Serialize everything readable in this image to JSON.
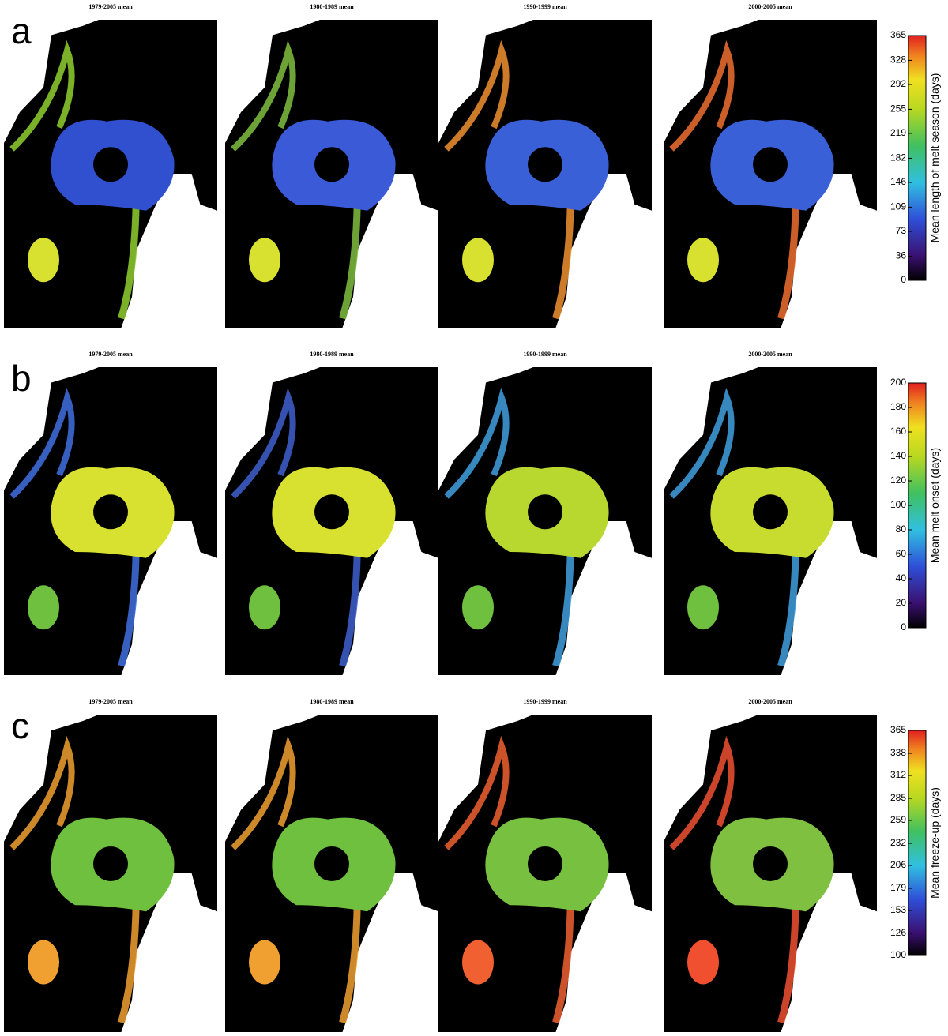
{
  "panels": [
    {
      "label": "a",
      "maps": [
        "1979-2005 mean",
        "1980-1989 mean",
        "1990-1999 mean",
        "2000-2005 mean"
      ],
      "colorbar": {
        "label": "Mean length of melt season (days)",
        "ticks": [
          0,
          36,
          73,
          109,
          146,
          182,
          219,
          255,
          292,
          328,
          365
        ]
      }
    },
    {
      "label": "b",
      "maps": [
        "1979-2005 mean",
        "1980-1989 mean",
        "1990-1999 mean",
        "2000-2005 mean"
      ],
      "colorbar": {
        "label": "Mean melt onset (days)",
        "ticks": [
          0,
          20,
          40,
          60,
          80,
          100,
          120,
          140,
          160,
          180,
          200
        ]
      }
    },
    {
      "label": "c",
      "maps": [
        "1979-2005 mean",
        "1980-1989 mean",
        "1990-1999 mean",
        "2000-2005 mean"
      ],
      "colorbar": {
        "label": "Mean freeze-up (days)",
        "ticks": [
          100,
          126,
          153,
          179,
          206,
          232,
          259,
          285,
          312,
          338,
          365
        ]
      }
    }
  ]
}
